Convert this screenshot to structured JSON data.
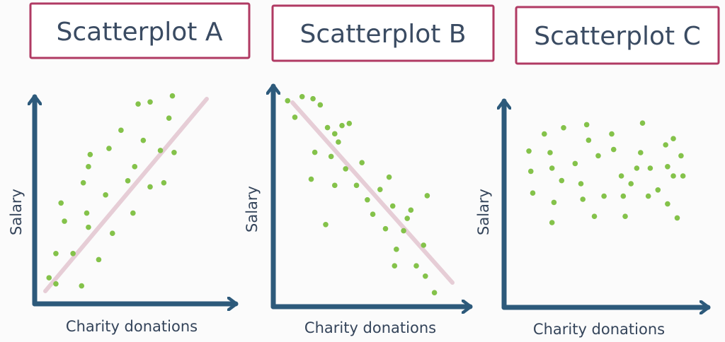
{
  "colors": {
    "axis": "#2d5a7b",
    "point": "#84c24a",
    "trend": "#e6cdd6",
    "title_border": "#b03a63",
    "text": "#3a4b62",
    "background": "#fbfbfb"
  },
  "chart_data": [
    {
      "type": "scatter",
      "title": "Scatterplot A",
      "xlabel": "Charity donations",
      "ylabel": "Salary",
      "trendline": "increasing",
      "points": [
        {
          "x": 3,
          "y": 8
        },
        {
          "x": 7,
          "y": 20
        },
        {
          "x": 12,
          "y": 36
        },
        {
          "x": 10,
          "y": 45
        },
        {
          "x": 17,
          "y": 20
        },
        {
          "x": 22,
          "y": 4
        },
        {
          "x": 23,
          "y": 55
        },
        {
          "x": 25,
          "y": 40
        },
        {
          "x": 26,
          "y": 63
        },
        {
          "x": 27,
          "y": 69
        },
        {
          "x": 26,
          "y": 33
        },
        {
          "x": 32,
          "y": 17
        },
        {
          "x": 36,
          "y": 49
        },
        {
          "x": 38,
          "y": 72
        },
        {
          "x": 40,
          "y": 30
        },
        {
          "x": 45,
          "y": 81
        },
        {
          "x": 49,
          "y": 56
        },
        {
          "x": 52,
          "y": 40
        },
        {
          "x": 53,
          "y": 63
        },
        {
          "x": 55,
          "y": 94
        },
        {
          "x": 58,
          "y": 76
        },
        {
          "x": 62,
          "y": 95
        },
        {
          "x": 62,
          "y": 53
        },
        {
          "x": 68,
          "y": 71
        },
        {
          "x": 70,
          "y": 55
        },
        {
          "x": 73,
          "y": 87
        },
        {
          "x": 75,
          "y": 98
        },
        {
          "x": 76,
          "y": 70
        },
        {
          "x": 7,
          "y": 5
        }
      ]
    },
    {
      "type": "scatter",
      "title": "Scatterplot B",
      "xlabel": "Charity donations",
      "ylabel": "Salary",
      "trendline": "decreasing",
      "points": [
        {
          "x": 4,
          "y": 95
        },
        {
          "x": 8,
          "y": 87
        },
        {
          "x": 12,
          "y": 97
        },
        {
          "x": 18,
          "y": 96
        },
        {
          "x": 22,
          "y": 93
        },
        {
          "x": 26,
          "y": 82
        },
        {
          "x": 30,
          "y": 79
        },
        {
          "x": 34,
          "y": 83
        },
        {
          "x": 38,
          "y": 84
        },
        {
          "x": 19,
          "y": 70
        },
        {
          "x": 17,
          "y": 57
        },
        {
          "x": 25,
          "y": 35
        },
        {
          "x": 28,
          "y": 68
        },
        {
          "x": 32,
          "y": 75
        },
        {
          "x": 36,
          "y": 62
        },
        {
          "x": 30,
          "y": 54
        },
        {
          "x": 42,
          "y": 54
        },
        {
          "x": 45,
          "y": 65
        },
        {
          "x": 48,
          "y": 47
        },
        {
          "x": 51,
          "y": 40
        },
        {
          "x": 55,
          "y": 52
        },
        {
          "x": 58,
          "y": 33
        },
        {
          "x": 60,
          "y": 58
        },
        {
          "x": 62,
          "y": 44
        },
        {
          "x": 64,
          "y": 23
        },
        {
          "x": 63,
          "y": 15
        },
        {
          "x": 68,
          "y": 32
        },
        {
          "x": 72,
          "y": 42
        },
        {
          "x": 75,
          "y": 15
        },
        {
          "x": 79,
          "y": 25
        },
        {
          "x": 80,
          "y": 10
        },
        {
          "x": 81,
          "y": 49
        },
        {
          "x": 85,
          "y": 2
        },
        {
          "x": 70,
          "y": 38
        }
      ]
    },
    {
      "type": "scatter",
      "title": "Scatterplot C",
      "xlabel": "Charity donations",
      "ylabel": "Salary",
      "trendline": "none",
      "points": [
        {
          "x": 7,
          "y": 71
        },
        {
          "x": 8,
          "y": 58
        },
        {
          "x": 9,
          "y": 44
        },
        {
          "x": 15,
          "y": 82
        },
        {
          "x": 18,
          "y": 70
        },
        {
          "x": 19,
          "y": 60
        },
        {
          "x": 19,
          "y": 25
        },
        {
          "x": 20,
          "y": 38
        },
        {
          "x": 25,
          "y": 86
        },
        {
          "x": 24,
          "y": 52
        },
        {
          "x": 31,
          "y": 63
        },
        {
          "x": 34,
          "y": 50
        },
        {
          "x": 35,
          "y": 40
        },
        {
          "x": 37,
          "y": 88
        },
        {
          "x": 38,
          "y": 78
        },
        {
          "x": 41,
          "y": 29
        },
        {
          "x": 43,
          "y": 68
        },
        {
          "x": 46,
          "y": 42
        },
        {
          "x": 50,
          "y": 82
        },
        {
          "x": 51,
          "y": 72
        },
        {
          "x": 55,
          "y": 55
        },
        {
          "x": 56,
          "y": 42
        },
        {
          "x": 57,
          "y": 29
        },
        {
          "x": 60,
          "y": 50
        },
        {
          "x": 63,
          "y": 60
        },
        {
          "x": 65,
          "y": 70
        },
        {
          "x": 66,
          "y": 89
        },
        {
          "x": 69,
          "y": 42
        },
        {
          "x": 74,
          "y": 46
        },
        {
          "x": 78,
          "y": 75
        },
        {
          "x": 79,
          "y": 61
        },
        {
          "x": 79,
          "y": 37
        },
        {
          "x": 82,
          "y": 55
        },
        {
          "x": 82,
          "y": 79
        },
        {
          "x": 84,
          "y": 28
        },
        {
          "x": 86,
          "y": 68
        },
        {
          "x": 87,
          "y": 55
        },
        {
          "x": 70,
          "y": 60
        }
      ]
    }
  ]
}
